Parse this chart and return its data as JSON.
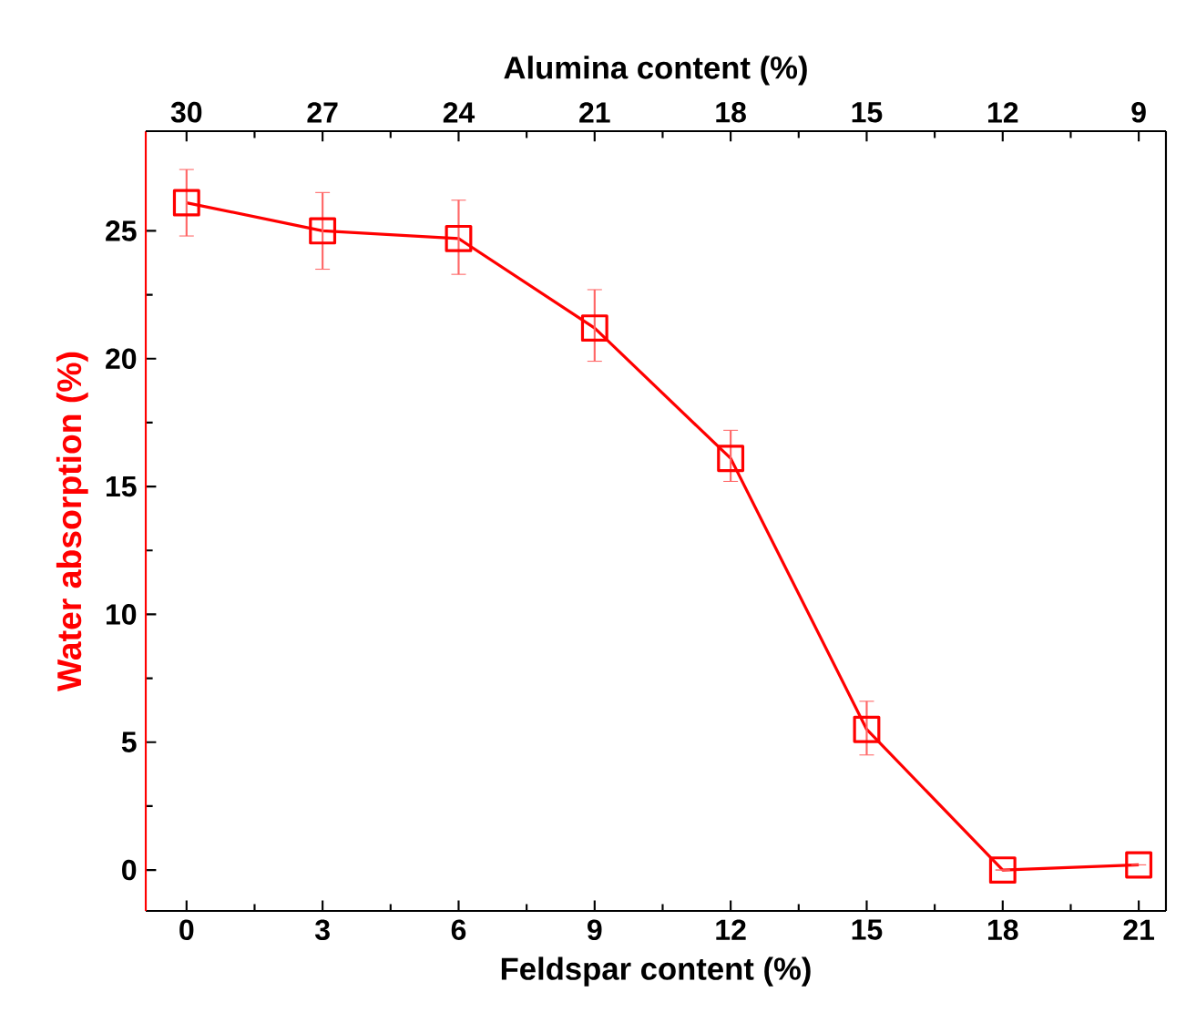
{
  "chart_data": {
    "type": "line",
    "xlabel": "Feldspar content (%)",
    "ylabel": "Water absorption (%)",
    "x2label": "Alumina content (%)",
    "x": [
      0,
      3,
      6,
      9,
      12,
      15,
      18,
      21
    ],
    "series": [
      {
        "color": "#ff0000",
        "values": [
          26.1,
          25.0,
          24.7,
          21.2,
          16.1,
          5.5,
          0,
          0.2
        ],
        "errors": [
          [
            24.8,
            27.4
          ],
          [
            23.5,
            26.5
          ],
          [
            23.3,
            26.2
          ],
          [
            19.9,
            22.7
          ],
          [
            15.2,
            17.2
          ],
          [
            4.5,
            6.6
          ],
          null,
          null
        ]
      }
    ],
    "xlim": [
      -0.9,
      21.6
    ],
    "xticks": [
      0,
      3,
      6,
      9,
      12,
      15,
      18,
      21
    ],
    "x2lim": [
      30.9,
      8.4
    ],
    "x2ticks": [
      30,
      27,
      24,
      21,
      18,
      15,
      12,
      9
    ],
    "ylim": [
      -1.6,
      28.9
    ],
    "yticks": [
      0,
      5,
      10,
      15,
      20,
      25
    ],
    "marker": "square",
    "line_style": "solid"
  }
}
